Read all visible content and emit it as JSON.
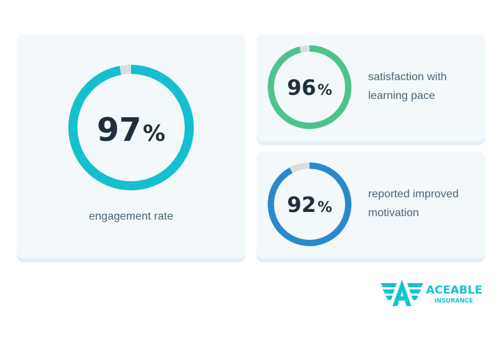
{
  "stats": [
    {
      "value": 97,
      "percent_sign": "%",
      "label": "engagement rate",
      "color": "#14bfcf"
    },
    {
      "value": 96,
      "percent_sign": "%",
      "label_line1": "satisfaction with",
      "label_line2": "learning pace",
      "color": "#4cc38e"
    },
    {
      "value": 92,
      "percent_sign": "%",
      "label_line1": "reported improved",
      "label_line2": "motivation",
      "color": "#2a89cd"
    }
  ],
  "track_color": "#d6dfe2",
  "logo": {
    "brand": "ACEABLE",
    "sub": "INSURANCE",
    "color": "#14c3d2"
  }
}
